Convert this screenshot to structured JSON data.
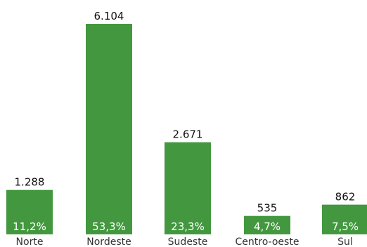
{
  "chart_data": {
    "type": "bar",
    "title": "",
    "xlabel": "",
    "ylabel": "",
    "categories": [
      "Norte",
      "Nordeste",
      "Sudeste",
      "Centro-oeste",
      "Sul"
    ],
    "values": [
      1288,
      6104,
      2671,
      535,
      862
    ],
    "value_labels": [
      "1.288",
      "6.104",
      "2.671",
      "535",
      "862"
    ],
    "percent_labels": [
      "11,2%",
      "53,3%",
      "23,3%",
      "4,7%",
      "7,5%"
    ],
    "ylim": [
      0,
      6104
    ],
    "grid": false,
    "legend": "none",
    "colors": {
      "bar": "#43983f",
      "percent_text": "#ffffff",
      "value_text": "#111111",
      "category_text": "#333333"
    }
  }
}
